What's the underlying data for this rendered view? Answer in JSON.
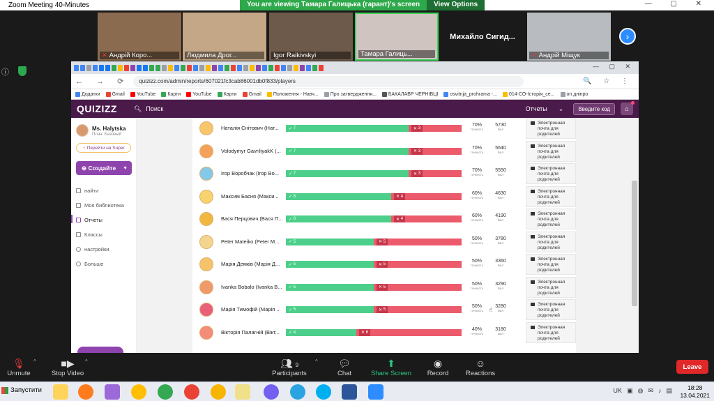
{
  "window": {
    "title": "Zoom Meeting 40-Minutes"
  },
  "share_banner": {
    "text": "You are viewing Тамара Галицька (гарант)'s screen",
    "options": "View Options"
  },
  "participants_strip": [
    {
      "name": "Андрій Коро...",
      "muted": true
    },
    {
      "name": "Людмила Дрог...",
      "muted": false
    },
    {
      "name": "Igor Raikivskyi",
      "muted": false
    },
    {
      "name": "Тамара Галиць...",
      "muted": false
    },
    {
      "name": "Михайло  Сигид...",
      "muted": false
    },
    {
      "name": "Андрій Міщук",
      "muted": true
    }
  ],
  "browser": {
    "url": "quizizz.com/admin/reports/607021fc3cab86001db0f833/players",
    "bookmarks": [
      "Додатки",
      "Gmail",
      "YouTube",
      "Карти",
      "YouTube",
      "Карти",
      "Gmail",
      "Положення - Навч...",
      "Про затвердження...",
      "БАКАЛАВР ЧЕРНІВЦІ",
      "osvitnja_prohrama -...",
      "014-СО-Історія_се...",
      "on дніпро"
    ]
  },
  "quizizz": {
    "logo": "QUIZIZZ",
    "search": "Поиск",
    "reports": "Отчеты",
    "enter_code": "Введите код",
    "user_name": "Ms. Halytska",
    "user_plan": "План: Базовый",
    "super": "Перейти на Super",
    "create": "Создайте",
    "nav": [
      "найти",
      "Моя библиотека",
      "Отчеты",
      "Классы",
      "настройки",
      "Больше"
    ]
  },
  "players": [
    {
      "name": "Наталія Снітович (Нат...",
      "correct": "7",
      "wrong": "3",
      "acc": "70%",
      "score": "5730"
    },
    {
      "name": "Volodymyr GavriliyakK (...",
      "correct": "7",
      "wrong": "3",
      "acc": "70%",
      "score": "5640"
    },
    {
      "name": "Ігор Воробчак (Ігор Во...",
      "correct": "7",
      "wrong": "3",
      "acc": "70%",
      "score": "5550"
    },
    {
      "name": "Максим Басня (Макси...",
      "correct": "6",
      "wrong": "4",
      "acc": "60%",
      "score": "4630"
    },
    {
      "name": "Вася Перцович (Вася П...",
      "correct": "6",
      "wrong": "4",
      "acc": "60%",
      "score": "4190"
    },
    {
      "name": "Peter Mateiko (Peter M...",
      "correct": "5",
      "wrong": "5",
      "acc": "50%",
      "score": "3780"
    },
    {
      "name": "Марія Демків (Марія Д...",
      "correct": "5",
      "wrong": "5",
      "acc": "50%",
      "score": "3360"
    },
    {
      "name": "Ivanka Bobalo (Ivanka B...",
      "correct": "5",
      "wrong": "5",
      "acc": "50%",
      "score": "3290"
    },
    {
      "name": "Марія Тимофій (Марія ...",
      "correct": "5",
      "wrong": "5",
      "acc": "50%",
      "score": "3280"
    },
    {
      "name": "Вікторія Палагній (Вікт...",
      "correct": "4",
      "wrong": "6",
      "acc": "40%",
      "score": "3180"
    }
  ],
  "labels": {
    "accuracy": "точность",
    "points": "Бал",
    "email": "Электронная почта для родителей"
  },
  "zoom_toolbar": {
    "unmute": "Unmute",
    "stop_video": "Stop Video",
    "participants": "Participants",
    "participants_count": "9",
    "chat": "Chat",
    "share": "Share Screen",
    "record": "Record",
    "reactions": "Reactions",
    "leave": "Leave"
  },
  "taskbar": {
    "start": "Запустити",
    "lang": "UK",
    "time": "18:28",
    "date": "13.04.2021"
  }
}
